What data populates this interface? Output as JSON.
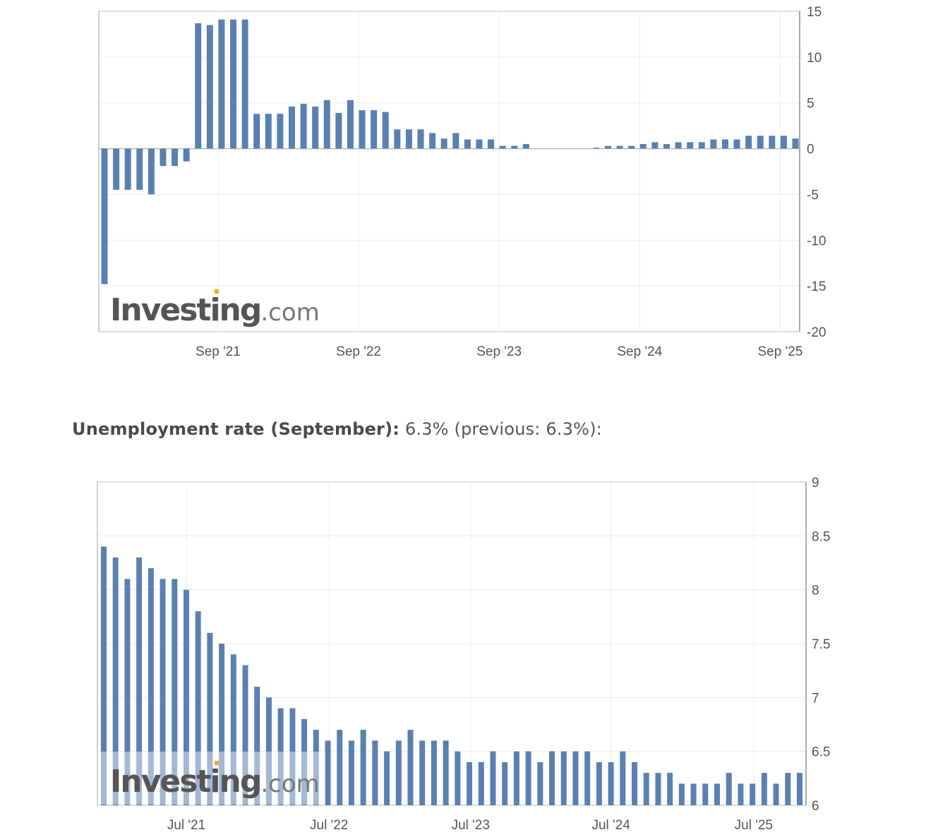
{
  "headline": {
    "label": "Unemployment rate (September):",
    "value": "6.3%",
    "previous": "(previous: 6.3%):"
  },
  "colors": {
    "bar": "#5a7fb1",
    "grid": "#ececec",
    "frame": "#cfcfcf",
    "axis": "#aaaaaa"
  },
  "chart_data": [
    {
      "type": "bar",
      "title": "",
      "watermark": "Investing.com",
      "watermark_parts": [
        "Investing",
        ".com"
      ],
      "ylim": [
        -20,
        15
      ],
      "yticks": [
        "15",
        "10",
        "5",
        "0",
        "-5",
        "-10",
        "-15",
        "-20"
      ],
      "ytick_values": [
        15,
        10,
        5,
        0,
        -5,
        -10,
        -15,
        -20
      ],
      "xticks": [
        {
          "label": "Sep '21",
          "index": 9.7
        },
        {
          "label": "Sep '22",
          "index": 21.7
        },
        {
          "label": "Sep '23",
          "index": 33.7
        },
        {
          "label": "Sep '24",
          "index": 45.7
        },
        {
          "label": "Sep '25",
          "index": 57.7
        }
      ],
      "grid": true,
      "values": [
        -14.8,
        -4.5,
        -4.5,
        -4.5,
        -5.0,
        -1.9,
        -1.9,
        -1.4,
        13.7,
        13.5,
        14.1,
        14.1,
        14.1,
        3.8,
        3.8,
        3.8,
        4.6,
        4.9,
        4.6,
        5.3,
        3.9,
        5.3,
        4.2,
        4.2,
        4.0,
        2.1,
        2.1,
        2.1,
        1.7,
        1.1,
        1.7,
        1.0,
        1.0,
        1.0,
        0.3,
        0.3,
        0.5,
        0,
        0,
        0,
        0,
        0,
        0.1,
        0.3,
        0.3,
        0.3,
        0.5,
        0.7,
        0.5,
        0.7,
        0.7,
        0.7,
        1.0,
        1.0,
        1.0,
        1.4,
        1.4,
        1.4,
        1.4,
        1.1
      ]
    },
    {
      "type": "bar",
      "title": "Unemployment rate (September)",
      "watermark": "Investing.com",
      "watermark_parts": [
        "Investing",
        ".com"
      ],
      "ylim": [
        6,
        9
      ],
      "yticks": [
        "9",
        "8.5",
        "8",
        "7.5",
        "7",
        "6.5",
        "6"
      ],
      "ytick_values": [
        9,
        8.5,
        8,
        7.5,
        7,
        6.5,
        6
      ],
      "xticks": [
        {
          "label": "Jul '21",
          "index": 7
        },
        {
          "label": "Jul '22",
          "index": 19.1
        },
        {
          "label": "Jul '23",
          "index": 31.1
        },
        {
          "label": "Jul '24",
          "index": 43
        },
        {
          "label": "Jul '25",
          "index": 55.1
        }
      ],
      "grid": true,
      "values": [
        8.4,
        8.3,
        8.1,
        8.3,
        8.2,
        8.1,
        8.1,
        8.0,
        7.8,
        7.6,
        7.5,
        7.4,
        7.3,
        7.1,
        7.0,
        6.9,
        6.9,
        6.8,
        6.7,
        6.6,
        6.7,
        6.6,
        6.7,
        6.6,
        6.5,
        6.6,
        6.7,
        6.6,
        6.6,
        6.6,
        6.5,
        6.4,
        6.4,
        6.5,
        6.4,
        6.5,
        6.5,
        6.4,
        6.5,
        6.5,
        6.5,
        6.5,
        6.4,
        6.4,
        6.5,
        6.4,
        6.3,
        6.3,
        6.3,
        6.2,
        6.2,
        6.2,
        6.2,
        6.3,
        6.2,
        6.2,
        6.3,
        6.2,
        6.3,
        6.3
      ]
    }
  ]
}
